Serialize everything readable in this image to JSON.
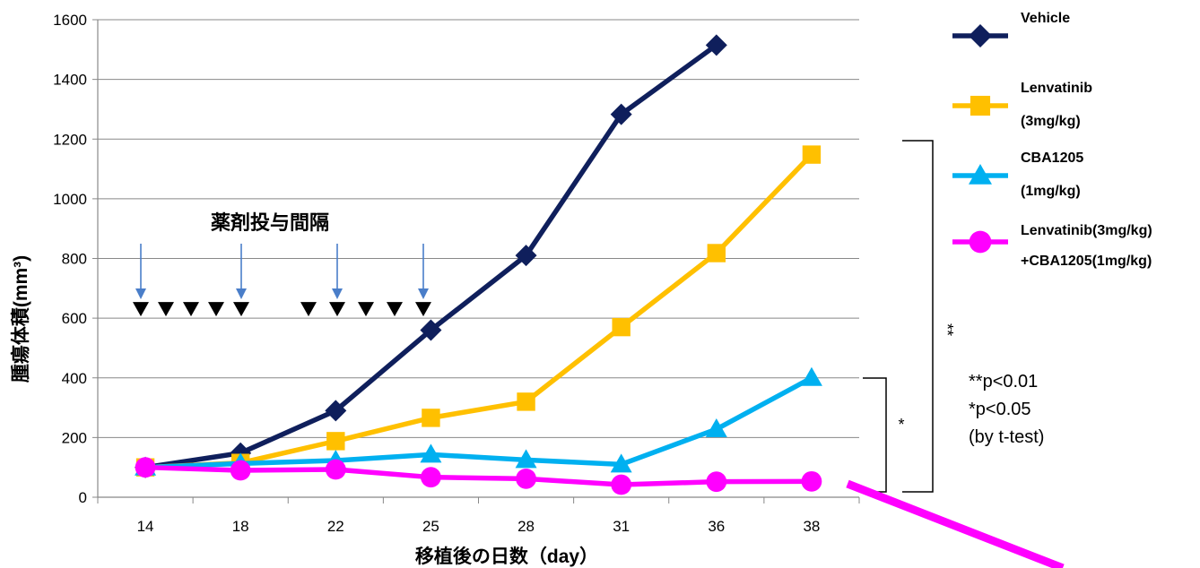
{
  "chart_data": {
    "type": "line",
    "title": "",
    "xlabel": "移植後の日数（day）",
    "ylabel": "腫瘍体積(mm³)",
    "categories": [
      "14",
      "18",
      "22",
      "25",
      "28",
      "31",
      "36",
      "38"
    ],
    "ylim": [
      0,
      1600
    ],
    "yticks": [
      "0",
      "200",
      "400",
      "600",
      "800",
      "1000",
      "1200",
      "1400",
      "1600"
    ],
    "grid": true,
    "legend_position": "right",
    "series": [
      {
        "name": "Vehicle",
        "name_lines": [
          "Vehicle"
        ],
        "color": "#0f1f5c",
        "marker": "diamond",
        "values": [
          100,
          148,
          290,
          560,
          810,
          1283,
          1515,
          null
        ]
      },
      {
        "name": "Lenvatinib (3mg/kg)",
        "name_lines": [
          "Lenvatinib",
          "(3mg/kg)"
        ],
        "color": "#ffc000",
        "marker": "square",
        "values": [
          100,
          115,
          188,
          266,
          320,
          570,
          818,
          1148
        ]
      },
      {
        "name": "CBA1205 (1mg/kg)",
        "name_lines": [
          "CBA1205",
          "(1mg/kg)"
        ],
        "color": "#00b0f0",
        "marker": "triangle",
        "values": [
          100,
          113,
          123,
          143,
          125,
          110,
          228,
          400
        ]
      },
      {
        "name": "Lenvatinib(3mg/kg) +CBA1205(1mg/kg)",
        "name_lines": [
          "Lenvatinib(3mg/kg)",
          "+CBA1205(1mg/kg)"
        ],
        "color": "#ff00ff",
        "marker": "circle",
        "values": [
          100,
          90,
          93,
          67,
          62,
          42,
          52,
          53
        ]
      }
    ],
    "annotations": {
      "dosing_label": "薬剤投与間隔",
      "significance": {
        "double": "**",
        "single": "*"
      },
      "notes": [
        "**p<0.01",
        "*p<0.05",
        "(by t-test)"
      ]
    }
  }
}
